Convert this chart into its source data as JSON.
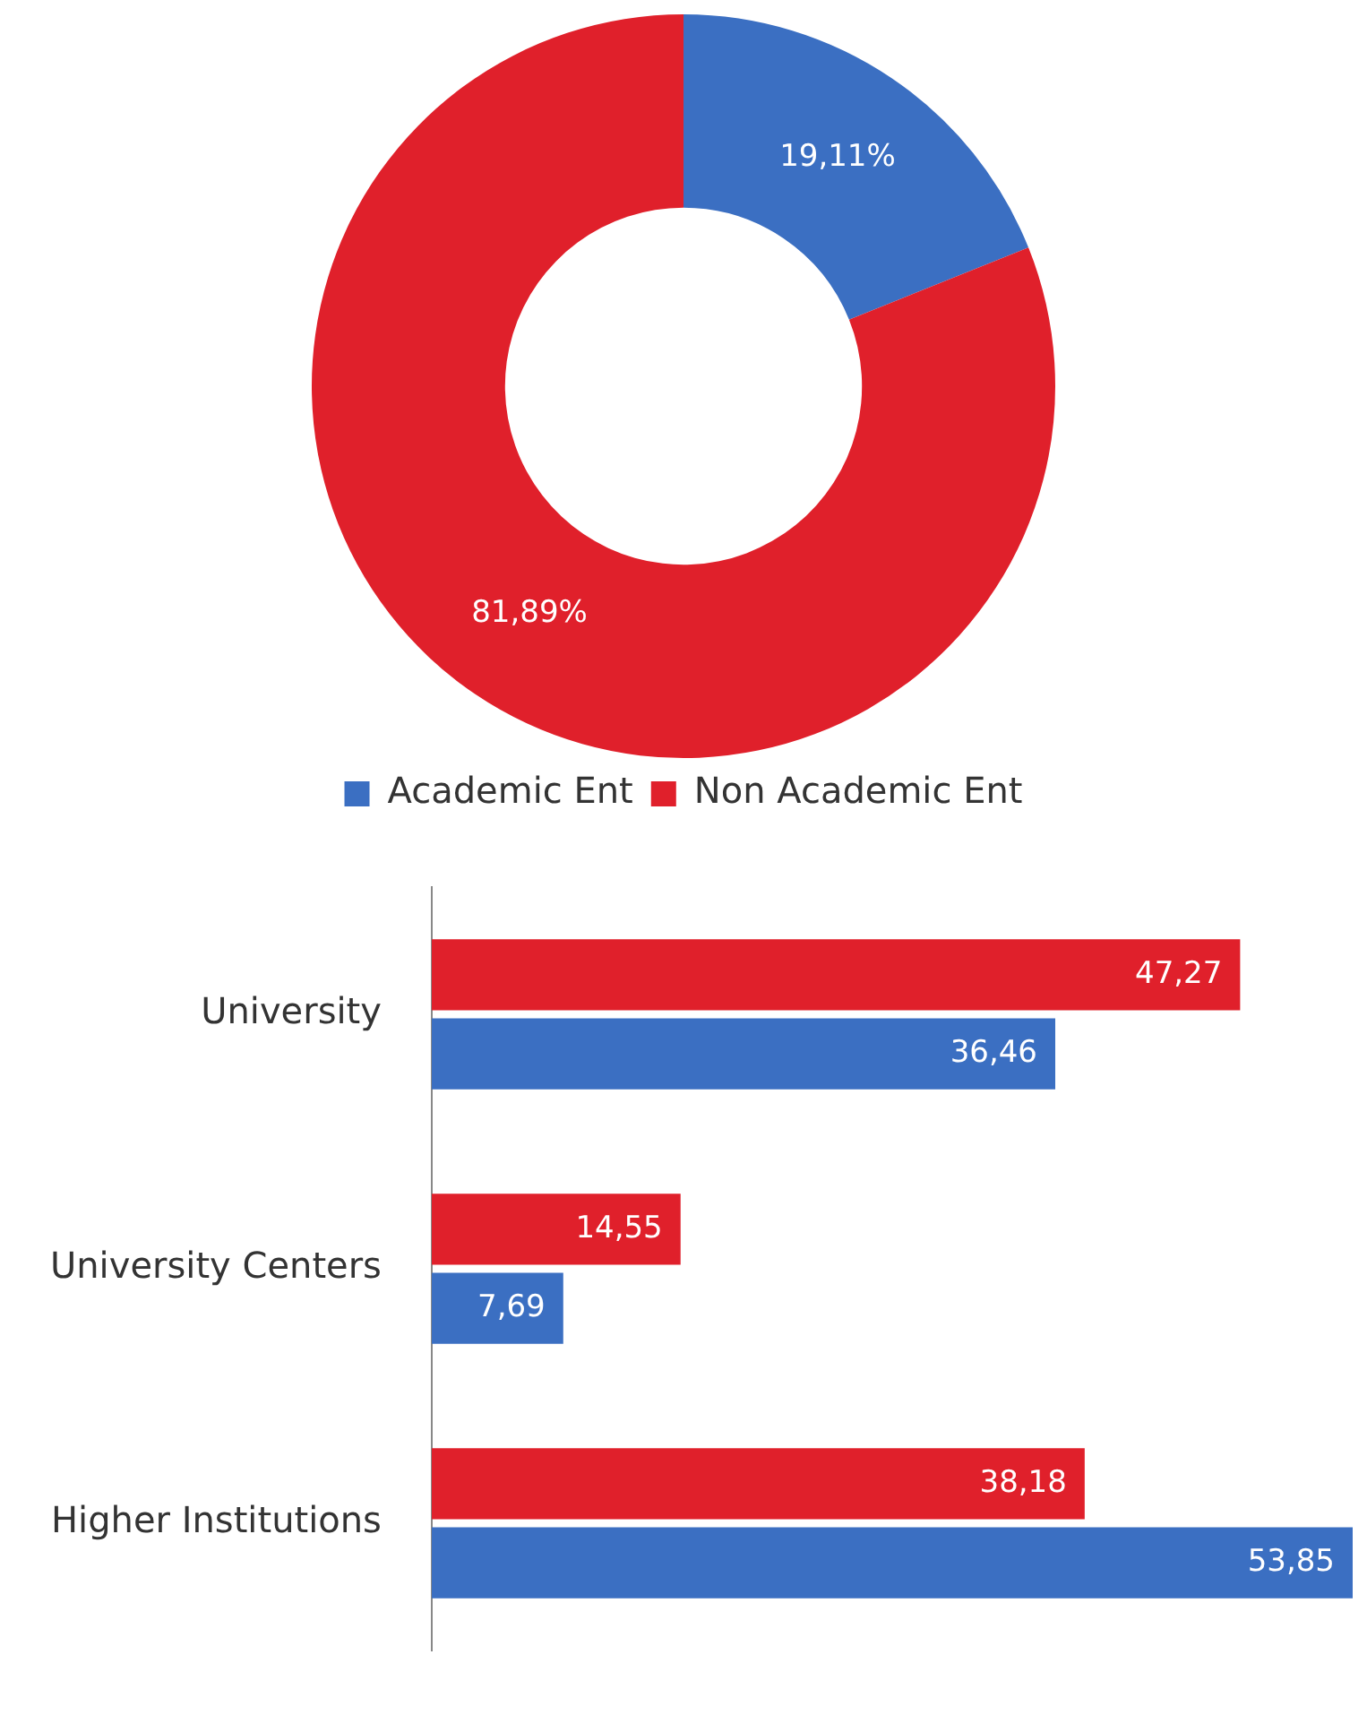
{
  "chart_data": [
    {
      "type": "donut",
      "categories": [
        "Academic Ent",
        "Non Academic Ent"
      ],
      "values": [
        19.11,
        81.89
      ],
      "colors": [
        "#3b6fc2",
        "#e0202b"
      ],
      "value_labels": [
        "19,11%",
        "81,89%"
      ],
      "legend": "bottom"
    },
    {
      "type": "bar",
      "orientation": "horizontal",
      "categories": [
        "University",
        "University Centers",
        "Higher Institutions"
      ],
      "series": [
        {
          "color": "#e0202b",
          "values": [
            47.27,
            14.55,
            38.18
          ],
          "value_labels": [
            "47,27",
            "14,55",
            "38,18"
          ]
        },
        {
          "color": "#3b6fc2",
          "values": [
            36.46,
            7.69,
            53.85
          ],
          "value_labels": [
            "36,46",
            "7,69",
            "53,85"
          ]
        }
      ]
    }
  ]
}
